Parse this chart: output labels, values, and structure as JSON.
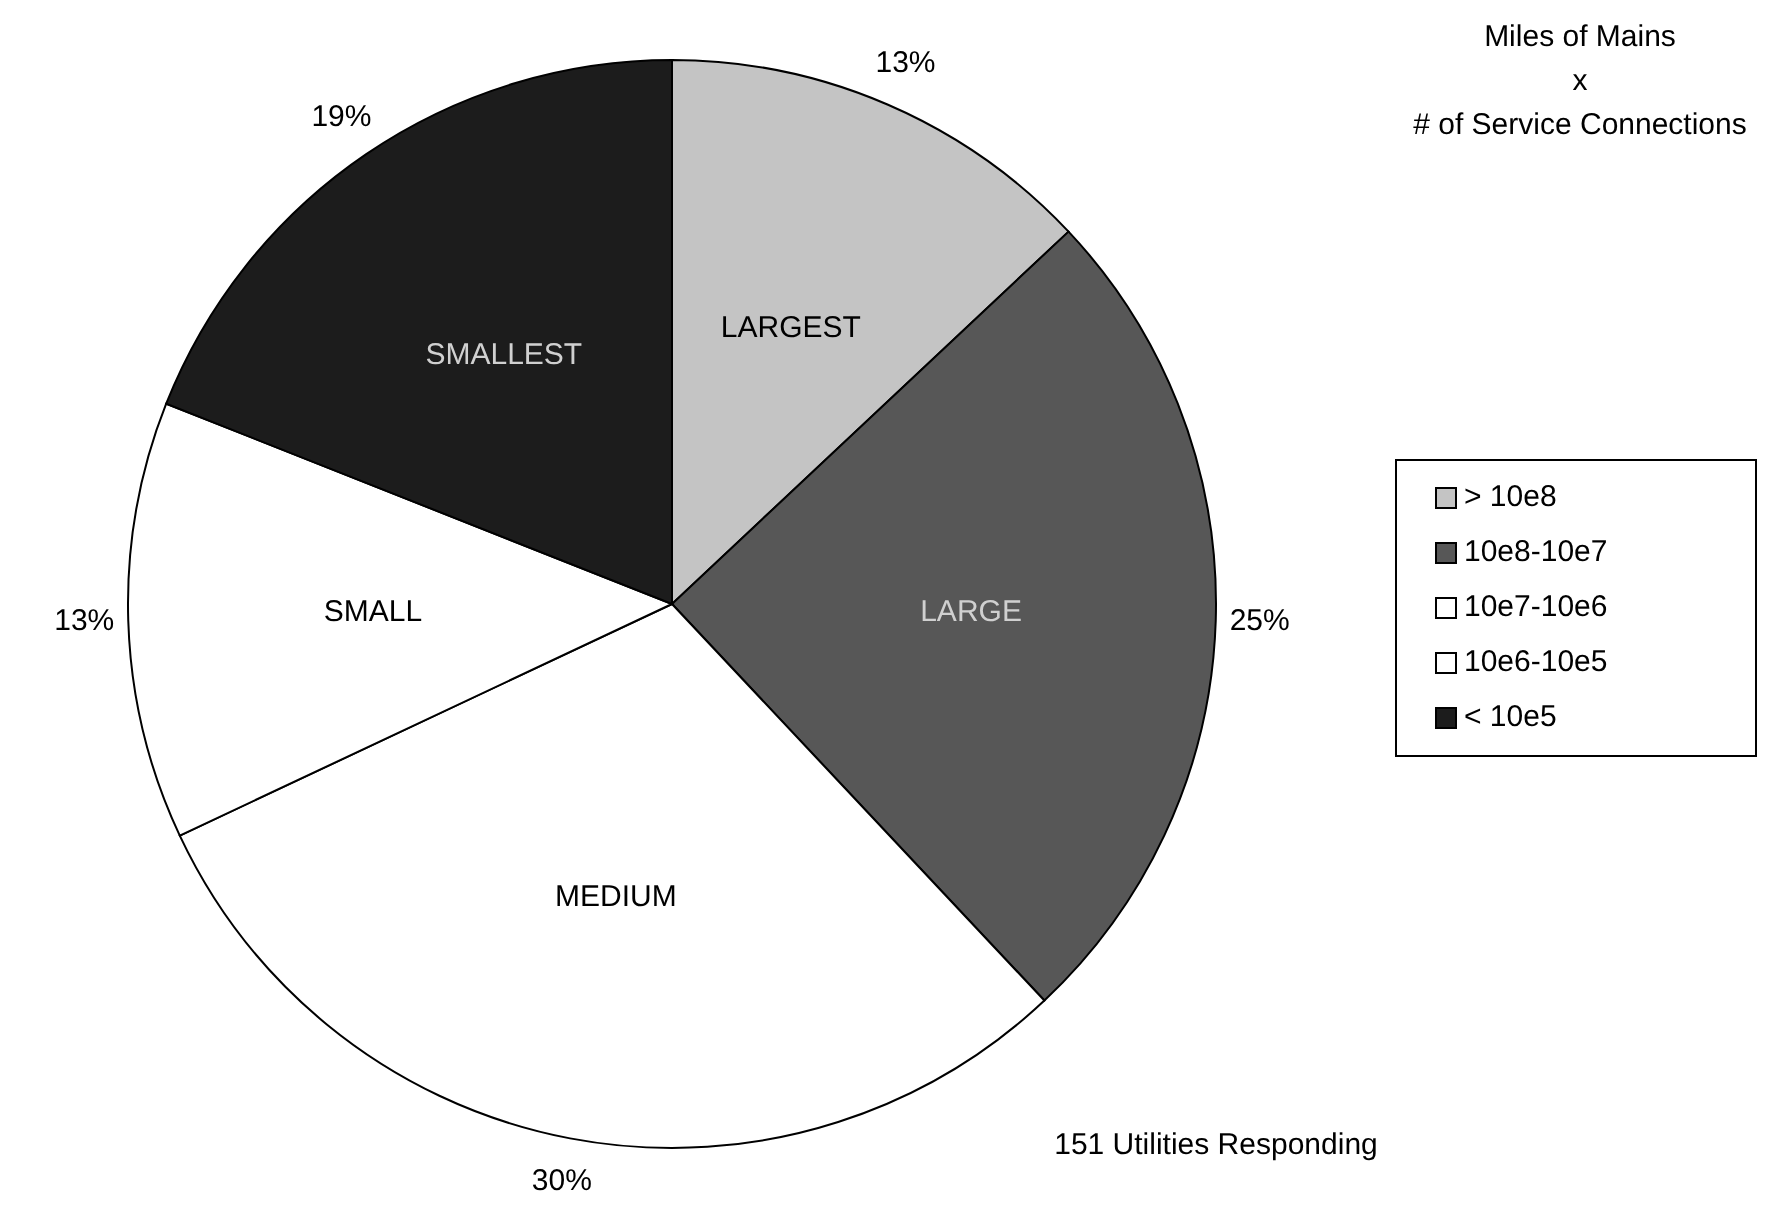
{
  "chart_data": {
    "type": "pie",
    "title": "Miles of Mains\nx\n# of Service Connections",
    "categories": [
      "> 10e8",
      "10e8-10e7",
      "10e7-10e6",
      "10e6-10e5",
      "< 10e5"
    ],
    "values": [
      13,
      25,
      30,
      13,
      19
    ],
    "colors": [
      "#c4c4c4",
      "#575757",
      "#ffffff",
      "#ffffff",
      "#1c1c1c"
    ],
    "value_labels": [
      "13%",
      "25%",
      "30%",
      "13%",
      "19%"
    ],
    "legend": "right",
    "annotations": [
      {
        "text": "LARGEST",
        "x": "> 10e8"
      },
      {
        "text": "LARGE",
        "x": "10e8-10e7"
      },
      {
        "text": "MEDIUM",
        "x": "10e7-10e6"
      },
      {
        "text": "SMALL",
        "x": "10e6-10e5"
      },
      {
        "text": "SMALLEST",
        "x": "< 10e5"
      },
      "151 Utilities Responding"
    ]
  }
}
